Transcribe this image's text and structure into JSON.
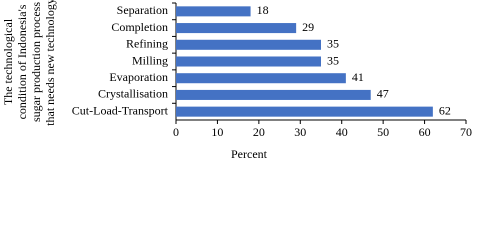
{
  "chart_data": {
    "type": "bar",
    "orientation": "horizontal",
    "y_label": [
      "The technological",
      "condition of Indonesia's",
      "sugar production process",
      "that needs new technology"
    ],
    "x_label": "Percent",
    "categories": [
      "Separation",
      "Completion",
      "Refining",
      "Milling",
      "Evaporation",
      "Crystallisation",
      "Cut-Load-Transport"
    ],
    "values": [
      18,
      29,
      35,
      35,
      41,
      47,
      62
    ],
    "color": "#4472c4",
    "xlim": [
      0,
      70
    ],
    "xticks": [
      0,
      10,
      20,
      30,
      40,
      50,
      60,
      70
    ],
    "grid": false
  }
}
